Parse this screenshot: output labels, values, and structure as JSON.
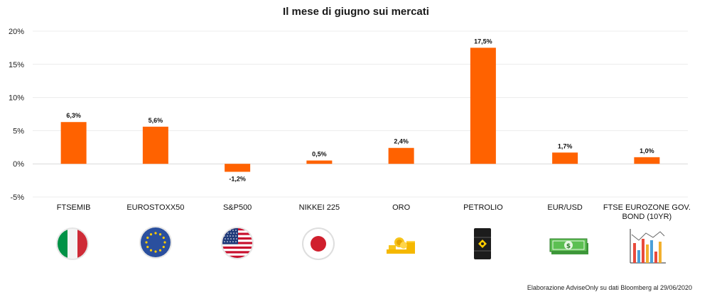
{
  "chart_data": {
    "type": "bar",
    "title": "Il mese di giugno sui mercati",
    "categories": [
      "FTSEMIB",
      "EUROSTOXX50",
      "S&P500",
      "NIKKEI 225",
      "ORO",
      "PETROLIO",
      "EUR/USD",
      "FTSE EUROZONE GOV. BOND (10YR)"
    ],
    "category_lines": [
      [
        "FTSEMIB"
      ],
      [
        "EUROSTOXX50"
      ],
      [
        "S&P500"
      ],
      [
        "NIKKEI 225"
      ],
      [
        "ORO"
      ],
      [
        "PETROLIO"
      ],
      [
        "EUR/USD"
      ],
      [
        "FTSE EUROZONE GOV.",
        "BOND (10YR)"
      ]
    ],
    "values": [
      6.3,
      5.6,
      -1.2,
      0.5,
      2.4,
      17.5,
      1.7,
      1.0
    ],
    "data_labels": [
      "6,3%",
      "5,6%",
      "-1,2%",
      "0,5%",
      "2,4%",
      "17,5%",
      "1,7%",
      "1,0%"
    ],
    "ylim": [
      -5,
      20
    ],
    "yticks": [
      -5,
      0,
      5,
      10,
      15,
      20
    ],
    "ytick_labels": [
      "-5%",
      "0%",
      "5%",
      "10%",
      "15%",
      "20%"
    ],
    "xlabel": "",
    "ylabel": "",
    "grid": true,
    "bar_color": "#ff6200",
    "category_icons": [
      "italy-flag-icon",
      "eu-flag-icon",
      "usa-flag-icon",
      "japan-flag-icon",
      "gold-coins-icon",
      "oil-barrel-icon",
      "dollar-banknotes-icon",
      "bond-bar-chart-icon"
    ]
  },
  "footer": {
    "source_note": "Elaborazione AdviseOnly su dati Bloomberg al 29/06/2020"
  }
}
